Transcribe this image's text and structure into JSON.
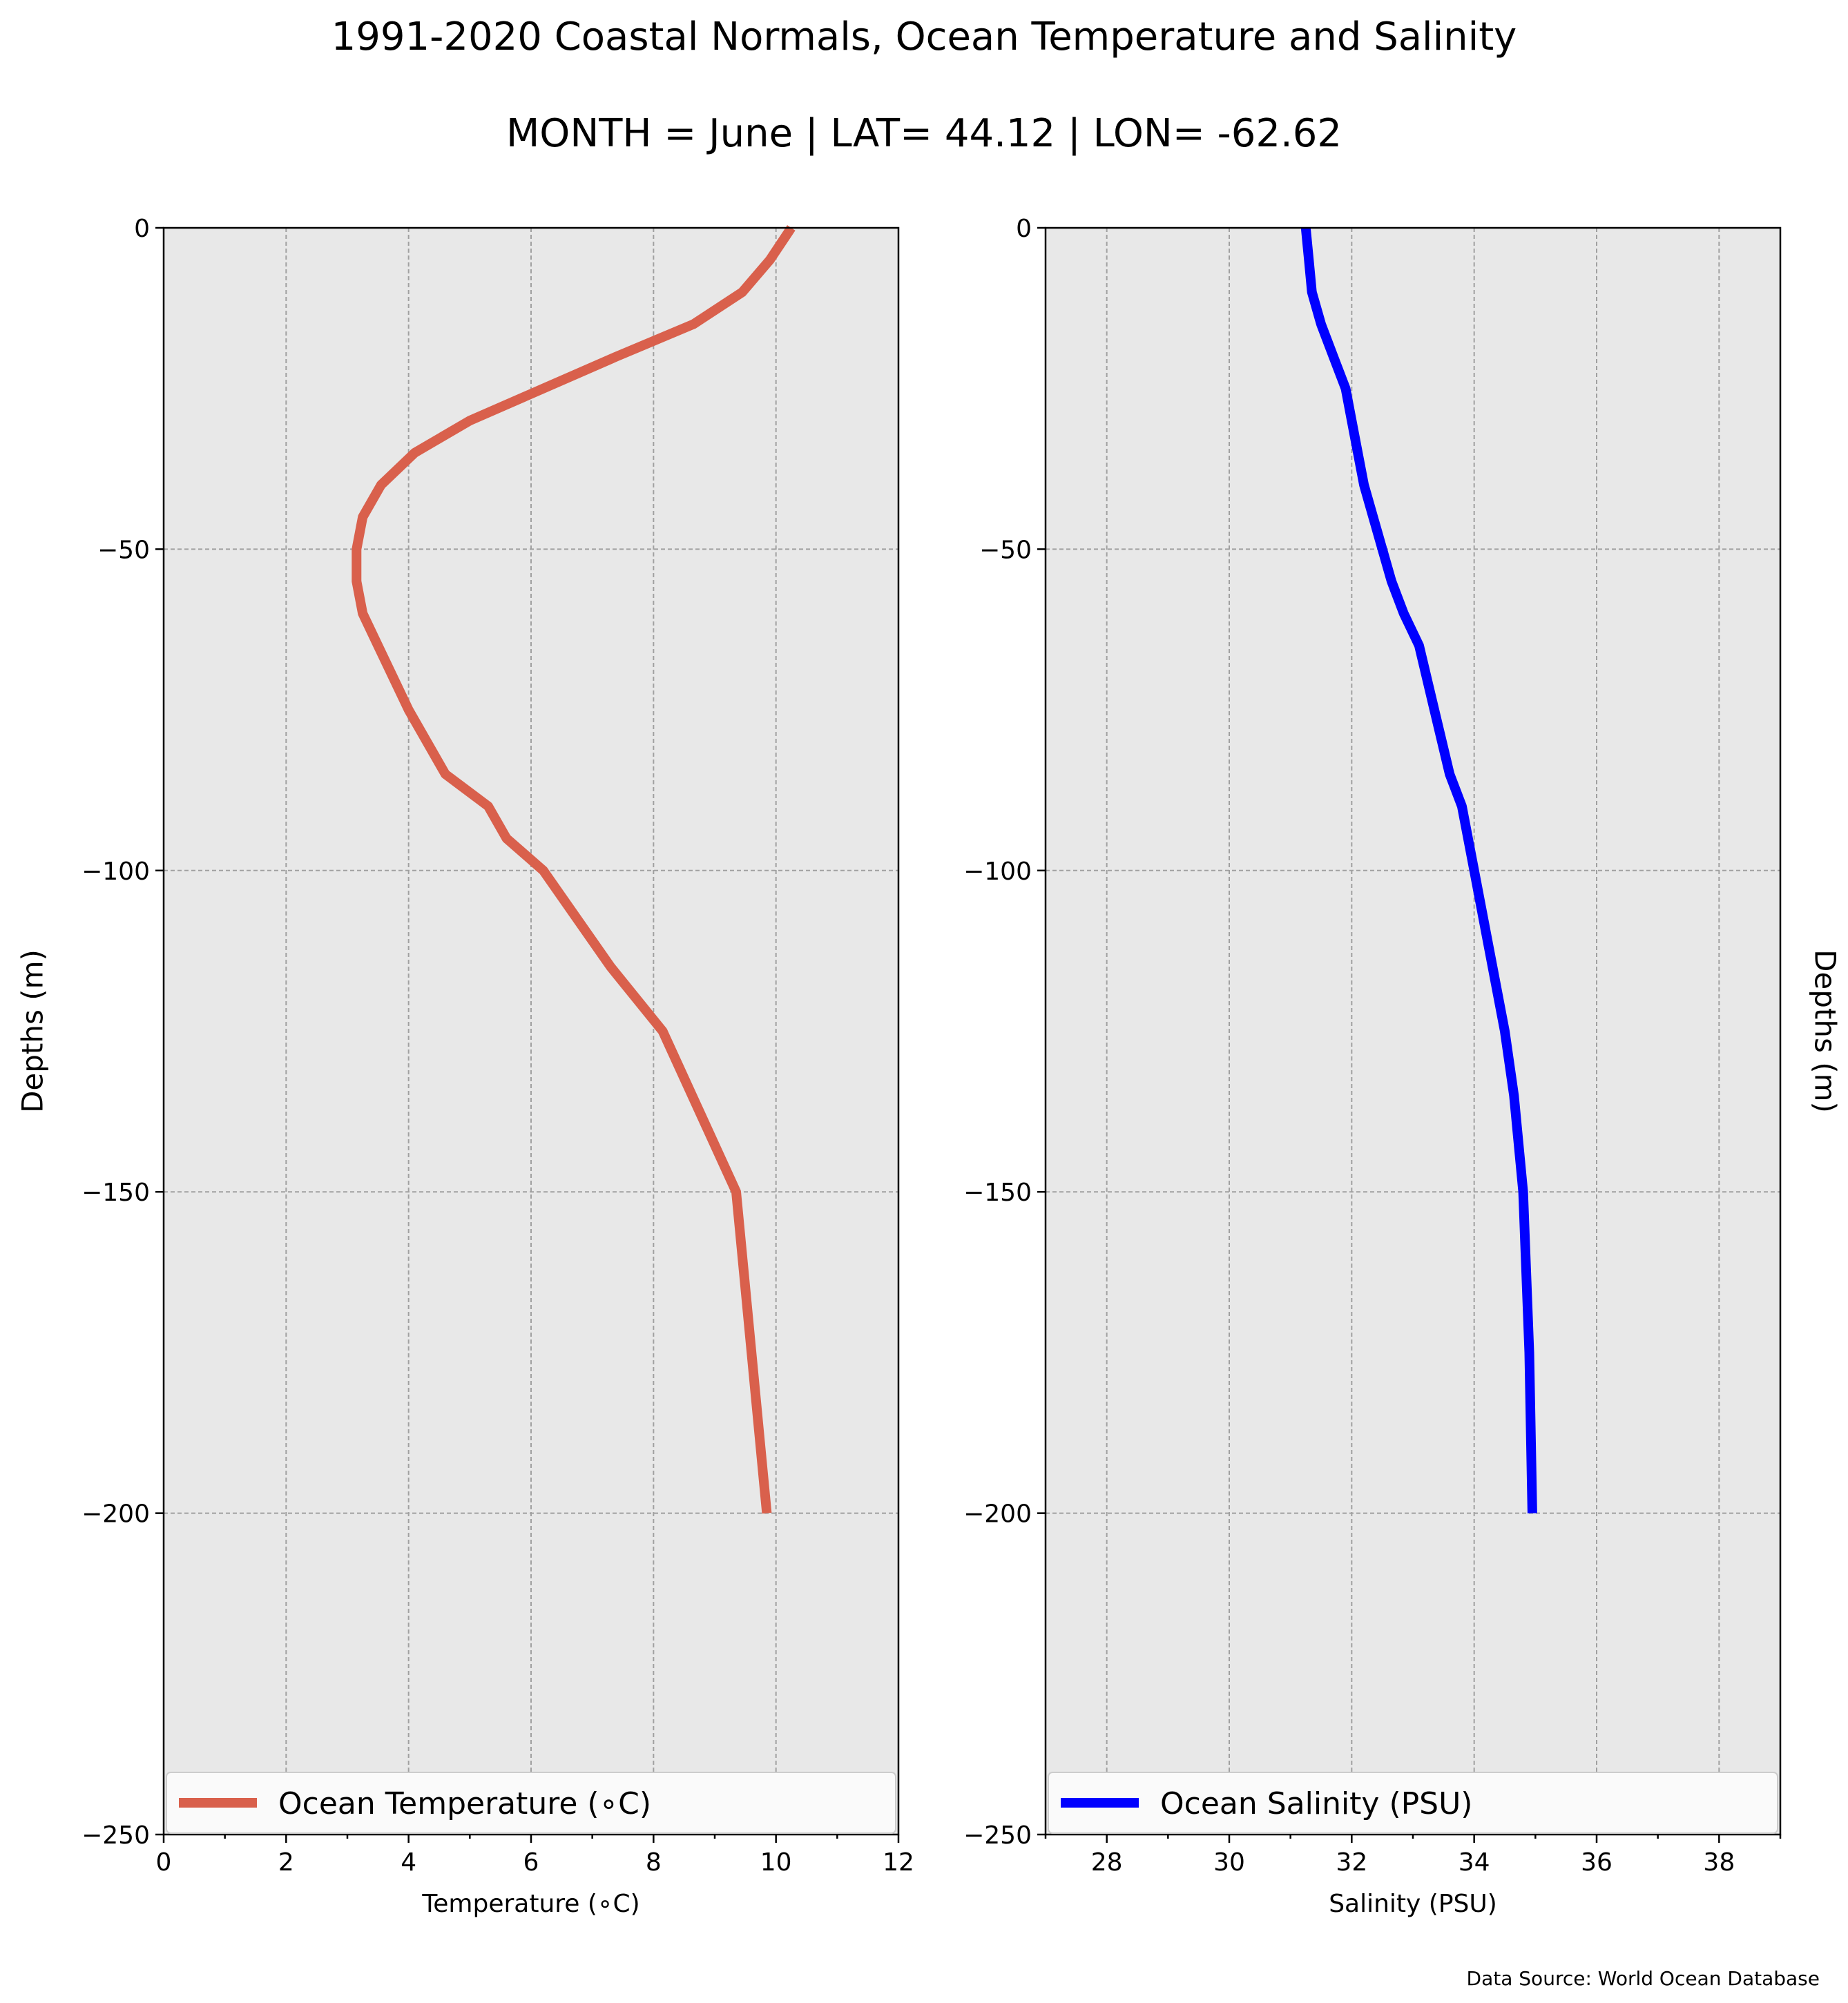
{
  "figure": {
    "title": "1991-2020 Coastal Normals, Ocean Temperature and Salinity",
    "subtitle": "MONTH = June | LAT= 44.12 | LON= -62.62",
    "source": "Data Source: World Ocean Database",
    "background_color": "#e8e8e8",
    "grid": true
  },
  "chart_data": [
    {
      "type": "line",
      "xlabel": "Temperature ($^\\circ$C)",
      "xlabel_display": "Temperature (∘C)",
      "ylabel": "Depths (m)",
      "ylabel_side": "left",
      "xlim": [
        0,
        12
      ],
      "ylim": [
        -250,
        0
      ],
      "xticks": [
        0,
        2,
        4,
        6,
        8,
        10,
        12
      ],
      "xtick_labels": [
        "0",
        "2",
        "4",
        "6",
        "8",
        "10",
        "12"
      ],
      "yticks": [
        0,
        -50,
        -100,
        -150,
        -200,
        -250
      ],
      "ytick_labels": [
        "0",
        "−50",
        "−100",
        "−150",
        "−200",
        "−250"
      ],
      "legend_position": "lower center",
      "series": [
        {
          "name": "Ocean Temperature (∘C)",
          "color": "#d9604c",
          "x": [
            10.25,
            9.9,
            9.45,
            8.65,
            7.4,
            6.2,
            5.0,
            4.1,
            3.55,
            3.25,
            3.15,
            3.15,
            3.25,
            3.5,
            4.0,
            4.6,
            5.3,
            5.6,
            6.2,
            7.3,
            8.15,
            9.35,
            9.6,
            9.85
          ],
          "y": [
            0,
            -5,
            -10,
            -15,
            -20,
            -25,
            -30,
            -35,
            -40,
            -45,
            -50,
            -55,
            -60,
            -65,
            -75,
            -85,
            -90,
            -95,
            -100,
            -115,
            -125,
            -150,
            -175,
            -200
          ]
        }
      ]
    },
    {
      "type": "line",
      "xlabel": "Salinity (PSU)",
      "ylabel": "Depths (m)",
      "ylabel_side": "right",
      "xlim": [
        27,
        39
      ],
      "ylim": [
        -250,
        0
      ],
      "xticks": [
        28,
        30,
        32,
        34,
        36,
        38
      ],
      "xtick_labels": [
        "28",
        "30",
        "32",
        "34",
        "36",
        "38"
      ],
      "yticks": [
        0,
        -50,
        -100,
        -150,
        -200,
        -250
      ],
      "ytick_labels": [
        "0",
        "−50",
        "−100",
        "−150",
        "−200",
        "−250"
      ],
      "legend_position": "lower center",
      "series": [
        {
          "name": "Ocean Salinity (PSU)",
          "color": "#0000ff",
          "x": [
            31.25,
            31.3,
            31.35,
            31.5,
            31.7,
            31.9,
            32.0,
            32.1,
            32.2,
            32.35,
            32.5,
            32.65,
            32.85,
            33.1,
            33.35,
            33.6,
            33.8,
            34.0,
            34.5,
            34.65,
            34.8,
            34.9,
            34.95
          ],
          "y": [
            0,
            -5,
            -10,
            -15,
            -20,
            -25,
            -30,
            -35,
            -40,
            -45,
            -50,
            -55,
            -60,
            -65,
            -75,
            -85,
            -90,
            -100,
            -125,
            -135,
            -150,
            -175,
            -200
          ]
        }
      ]
    }
  ]
}
